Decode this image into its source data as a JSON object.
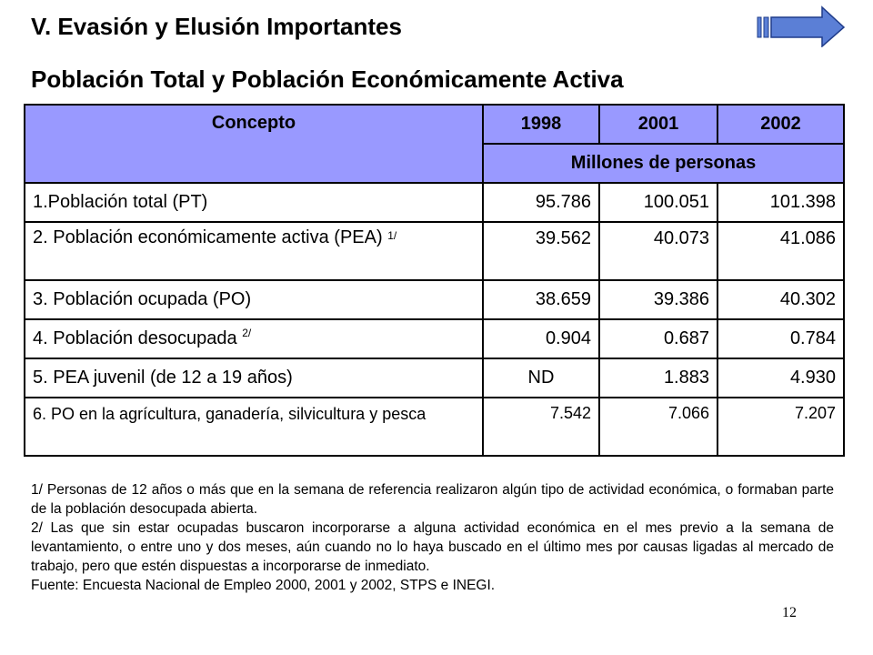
{
  "header": {
    "title": "V. Evasión y Elusión Importantes",
    "subtitle": "Población Total y Población Económicamente Activa",
    "nav_icon": "next-arrow-icon",
    "nav_color": "#5b7fd6"
  },
  "table": {
    "col_concept": "Concepto",
    "years": [
      "1998",
      "2001",
      "2002"
    ],
    "units": "Millones de personas",
    "header_color": "#9999ff",
    "rows": [
      {
        "label": "1.Población total (PT)",
        "note": "",
        "values": [
          "95.786",
          "100.051",
          "101.398"
        ]
      },
      {
        "label": "2. Población económicamente activa (PEA)",
        "note": "1/",
        "values": [
          "39.562",
          "40.073",
          "41.086"
        ]
      },
      {
        "label": "3. Población ocupada (PO)",
        "note": "",
        "values": [
          "38.659",
          "39.386",
          "40.302"
        ]
      },
      {
        "label": "4. Población desocupada",
        "note": "2/",
        "values": [
          "0.904",
          "0.687",
          "0.784"
        ]
      },
      {
        "label": "5. PEA juvenil (de 12 a 19 años)",
        "note": "",
        "values": [
          "ND",
          "1.883",
          "4.930"
        ]
      },
      {
        "label": "6. PO en la agrícultura, ganadería, silvicultura y pesca",
        "note": "",
        "values": [
          "7.542",
          "7.066",
          "7.207"
        ]
      }
    ]
  },
  "notes": {
    "note1": "1/ Personas de 12 años o más que en la semana de referencia realizaron algún tipo de actividad económica, o formaban parte de la población desocupada abierta.",
    "note2": "2/ Las que sin estar ocupadas buscaron incorporarse a alguna actividad económica en el mes previo a la semana de levantamiento, o entre uno y dos meses, aún cuando no lo haya buscado en el último mes por causas ligadas al mercado de trabajo, pero que estén dispuestas a incorporarse de inmediato.",
    "source": "Fuente: Encuesta Nacional de Empleo 2000, 2001  y 2002, STPS e INEGI."
  },
  "page_number": "12"
}
